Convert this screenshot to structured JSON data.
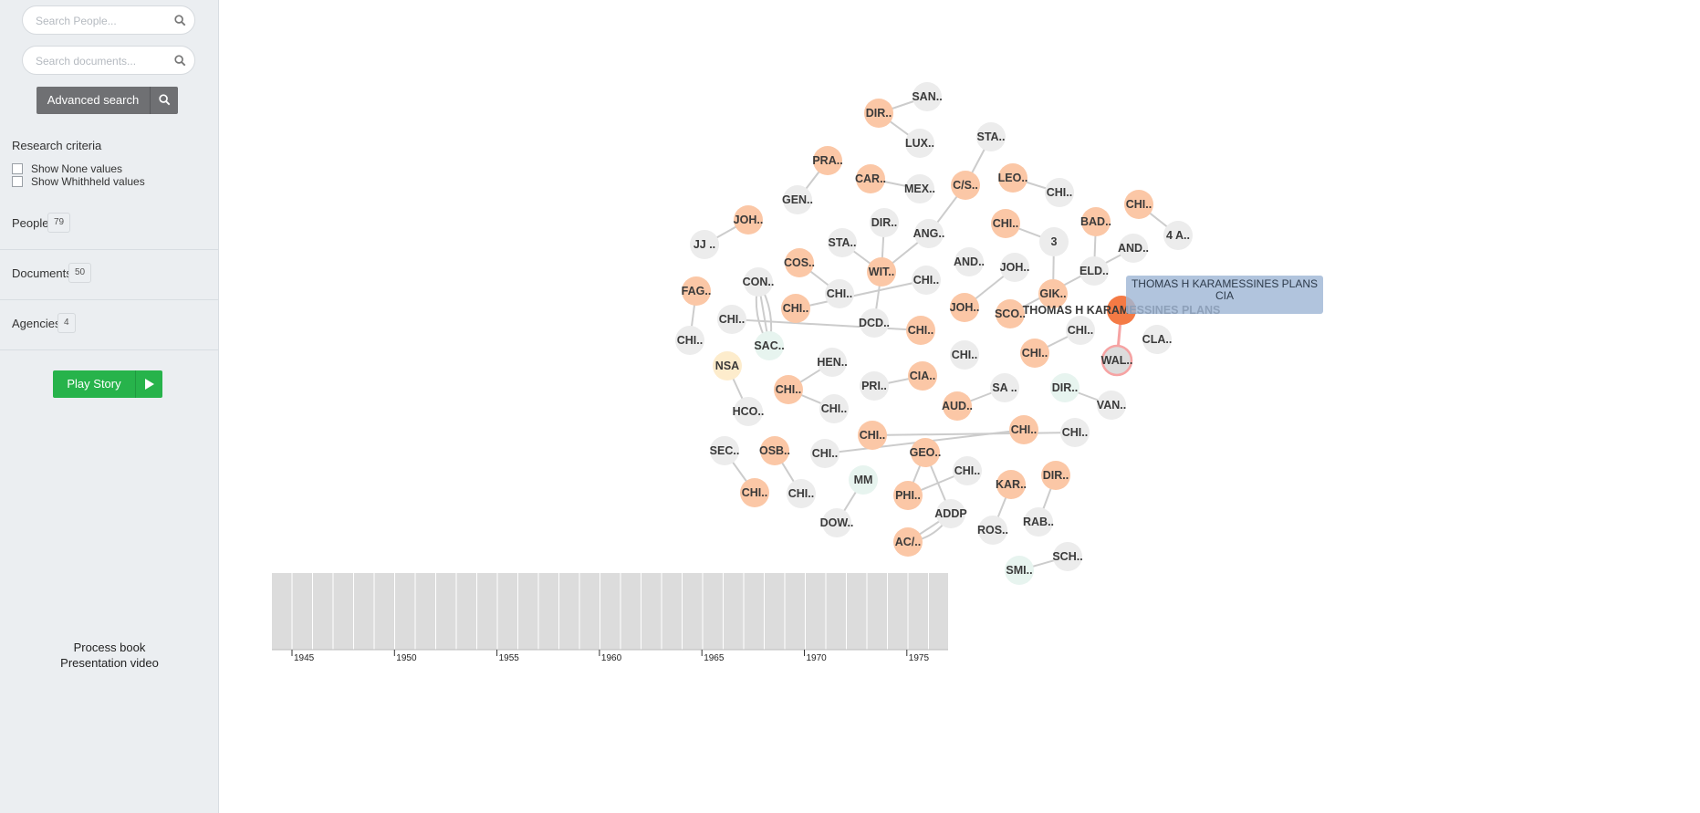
{
  "sidebar": {
    "search_people_placeholder": "Search People...",
    "search_documents_placeholder": "Search documents...",
    "advanced_search_label": "Advanced search",
    "research_criteria_title": "Research criteria",
    "show_none_label": "Show None values",
    "show_withheld_label": "Show Whithheld values",
    "sections": [
      {
        "label": "People",
        "count": "79"
      },
      {
        "label": "Documents",
        "count": "50"
      },
      {
        "label": "Agencies",
        "count": "4"
      }
    ],
    "play_story_label": "Play Story",
    "process_book_label": "Process book",
    "presentation_video_label": "Presentation video"
  },
  "graph": {
    "colors": {
      "orange": "#fbc7a6",
      "gray": "#ececec",
      "mint": "#e7f4ef",
      "yellow": "#fdeccc",
      "highlight": "#f47a45",
      "edge": "#cccccc",
      "highlight_edge": "#f6a3a3"
    },
    "nodes": [
      {
        "id": "n1",
        "label": "SAN..",
        "color": "gray"
      },
      {
        "id": "n2",
        "label": "DIR..",
        "color": "orange"
      },
      {
        "id": "n3",
        "label": "LUX..",
        "color": "gray"
      },
      {
        "id": "n4",
        "label": "STA..",
        "color": "gray"
      },
      {
        "id": "n5",
        "label": "PRA..",
        "color": "orange"
      },
      {
        "id": "n6",
        "label": "CAR..",
        "color": "orange"
      },
      {
        "id": "n7",
        "label": "MEX..",
        "color": "gray"
      },
      {
        "id": "n8",
        "label": "C/S..",
        "color": "orange"
      },
      {
        "id": "n9",
        "label": "LEO..",
        "color": "orange"
      },
      {
        "id": "n10",
        "label": "CHI..",
        "color": "gray"
      },
      {
        "id": "n11",
        "label": "GEN..",
        "color": "gray"
      },
      {
        "id": "n12",
        "label": "CHI..",
        "color": "orange"
      },
      {
        "id": "n13",
        "label": "JOH..",
        "color": "orange"
      },
      {
        "id": "n14",
        "label": "DIR..",
        "color": "gray"
      },
      {
        "id": "n15",
        "label": "ANG..",
        "color": "gray"
      },
      {
        "id": "n16",
        "label": "CHI..",
        "color": "orange"
      },
      {
        "id": "n17",
        "label": "BAD..",
        "color": "orange"
      },
      {
        "id": "n18",
        "label": "4 A..",
        "color": "gray"
      },
      {
        "id": "n19",
        "label": "JJ ..",
        "color": "gray"
      },
      {
        "id": "n20",
        "label": "STA..",
        "color": "gray"
      },
      {
        "id": "n21",
        "label": "3",
        "color": "gray"
      },
      {
        "id": "n22",
        "label": "AND..",
        "color": "gray"
      },
      {
        "id": "n23",
        "label": "COS..",
        "color": "orange"
      },
      {
        "id": "n24",
        "label": "AND..",
        "color": "gray"
      },
      {
        "id": "n25",
        "label": "JOH..",
        "color": "gray"
      },
      {
        "id": "n26",
        "label": "WIT..",
        "color": "orange"
      },
      {
        "id": "n27",
        "label": "ELD..",
        "color": "gray"
      },
      {
        "id": "n28",
        "label": "CON..",
        "color": "gray"
      },
      {
        "id": "n29",
        "label": "CHI..",
        "color": "gray"
      },
      {
        "id": "n30",
        "label": "FAG..",
        "color": "orange"
      },
      {
        "id": "n31",
        "label": "CHI..",
        "color": "gray"
      },
      {
        "id": "n32",
        "label": "GIK..",
        "color": "orange"
      },
      {
        "id": "n33",
        "label": "CHI..",
        "color": "orange"
      },
      {
        "id": "n34",
        "label": "JOH..",
        "color": "orange"
      },
      {
        "id": "n35",
        "label": "SCO..",
        "color": "orange"
      },
      {
        "id": "n36",
        "label": "THOMAS H KARAMESSINES PLANS",
        "color": "highlight"
      },
      {
        "id": "n37",
        "label": "CHI..",
        "color": "gray"
      },
      {
        "id": "n38",
        "label": "DCD..",
        "color": "gray"
      },
      {
        "id": "n39",
        "label": "CHI..",
        "color": "orange"
      },
      {
        "id": "n40",
        "label": "CHI..",
        "color": "gray"
      },
      {
        "id": "n41",
        "label": "CHI..",
        "color": "gray"
      },
      {
        "id": "n42",
        "label": "SAC..",
        "color": "mint"
      },
      {
        "id": "n43",
        "label": "CHI..",
        "color": "gray"
      },
      {
        "id": "n44",
        "label": "CHI..",
        "color": "orange"
      },
      {
        "id": "n45",
        "label": "CLA..",
        "color": "gray"
      },
      {
        "id": "n46",
        "label": "WAL..",
        "color": "highlight_ring"
      },
      {
        "id": "n47",
        "label": "NSA",
        "color": "yellow"
      },
      {
        "id": "n48",
        "label": "HEN..",
        "color": "gray"
      },
      {
        "id": "n49",
        "label": "CIA..",
        "color": "orange"
      },
      {
        "id": "n50",
        "label": "PRI..",
        "color": "gray"
      },
      {
        "id": "n51",
        "label": "CHI..",
        "color": "orange"
      },
      {
        "id": "n52",
        "label": "SA ..",
        "color": "gray"
      },
      {
        "id": "n53",
        "label": "DIR..",
        "color": "mint"
      },
      {
        "id": "n54",
        "label": "HCO..",
        "color": "gray"
      },
      {
        "id": "n55",
        "label": "CHI..",
        "color": "gray"
      },
      {
        "id": "n56",
        "label": "AUD..",
        "color": "orange"
      },
      {
        "id": "n57",
        "label": "VAN..",
        "color": "gray"
      },
      {
        "id": "n58",
        "label": "CHI..",
        "color": "orange"
      },
      {
        "id": "n59",
        "label": "CHI..",
        "color": "orange"
      },
      {
        "id": "n60",
        "label": "CHI..",
        "color": "gray"
      },
      {
        "id": "n61",
        "label": "SEC..",
        "color": "gray"
      },
      {
        "id": "n62",
        "label": "OSB..",
        "color": "orange"
      },
      {
        "id": "n63",
        "label": "CHI..",
        "color": "gray"
      },
      {
        "id": "n64",
        "label": "GEO..",
        "color": "orange"
      },
      {
        "id": "n65",
        "label": "MM",
        "color": "mint"
      },
      {
        "id": "n66",
        "label": "CHI..",
        "color": "gray"
      },
      {
        "id": "n67",
        "label": "KAR..",
        "color": "orange"
      },
      {
        "id": "n68",
        "label": "DIR..",
        "color": "orange"
      },
      {
        "id": "n69",
        "label": "CHI..",
        "color": "orange"
      },
      {
        "id": "n70",
        "label": "CHI..",
        "color": "gray"
      },
      {
        "id": "n71",
        "label": "PHI..",
        "color": "orange"
      },
      {
        "id": "n72",
        "label": "ADDP",
        "color": "gray"
      },
      {
        "id": "n73",
        "label": "DOW..",
        "color": "gray"
      },
      {
        "id": "n74",
        "label": "ROS..",
        "color": "gray"
      },
      {
        "id": "n75",
        "label": "RAB..",
        "color": "gray"
      },
      {
        "id": "n76",
        "label": "AC/..",
        "color": "orange"
      },
      {
        "id": "n77",
        "label": "SCH..",
        "color": "gray"
      },
      {
        "id": "n78",
        "label": "SMI..",
        "color": "mint"
      }
    ],
    "edges": [
      [
        "n2",
        "n1"
      ],
      [
        "n2",
        "n3"
      ],
      [
        "n5",
        "n11"
      ],
      [
        "n6",
        "n7"
      ],
      [
        "n8",
        "n4"
      ],
      [
        "n8",
        "n15"
      ],
      [
        "n9",
        "n10"
      ],
      [
        "n12",
        "n18"
      ],
      [
        "n13",
        "n19"
      ],
      [
        "n14",
        "n26"
      ],
      [
        "n15",
        "n26"
      ],
      [
        "n16",
        "n21"
      ],
      [
        "n21",
        "n32"
      ],
      [
        "n17",
        "n27"
      ],
      [
        "n20",
        "n26"
      ],
      [
        "n22",
        "n35"
      ],
      [
        "n23",
        "n29"
      ],
      [
        "n25",
        "n34"
      ],
      [
        "n26",
        "n38"
      ],
      [
        "n30",
        "n40"
      ],
      [
        "n28",
        "n42"
      ],
      [
        "n28",
        "n42"
      ],
      [
        "n28",
        "n42"
      ],
      [
        "n31",
        "n33"
      ],
      [
        "n37",
        "n39"
      ],
      [
        "n36",
        "n46",
        "hl"
      ],
      [
        "n44",
        "n43"
      ],
      [
        "n47",
        "n54"
      ],
      [
        "n48",
        "n51"
      ],
      [
        "n51",
        "n55"
      ],
      [
        "n50",
        "n49"
      ],
      [
        "n52",
        "n56"
      ],
      [
        "n53",
        "n57"
      ],
      [
        "n58",
        "n60"
      ],
      [
        "n59",
        "n63"
      ],
      [
        "n61",
        "n69"
      ],
      [
        "n62",
        "n70"
      ],
      [
        "n64",
        "n72"
      ],
      [
        "n64",
        "n71"
      ],
      [
        "n71",
        "n66"
      ],
      [
        "n65",
        "n73"
      ],
      [
        "n67",
        "n74"
      ],
      [
        "n68",
        "n75"
      ],
      [
        "n76",
        "n72"
      ],
      [
        "n76",
        "n72"
      ],
      [
        "n77",
        "n78"
      ]
    ],
    "tooltip": {
      "line1": "THOMAS H KARAMESSINES PLANS",
      "line2": "CIA"
    }
  },
  "timeline": {
    "tick_labels": [
      "1945",
      "1950",
      "1955",
      "1960",
      "1965",
      "1970",
      "1975"
    ]
  }
}
